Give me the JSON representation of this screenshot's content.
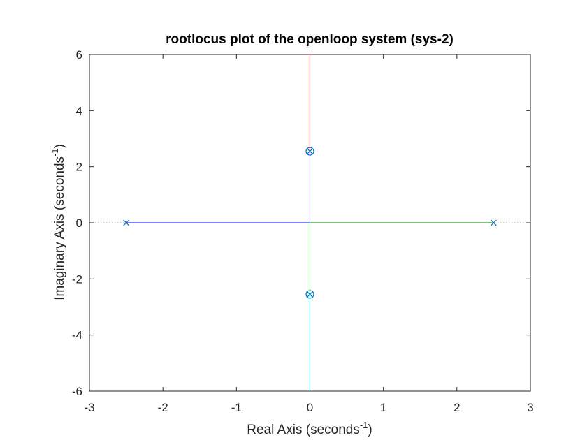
{
  "chart_data": {
    "type": "scatter",
    "title": "rootlocus plot of the openloop system (sys-2)",
    "xlabel": {
      "text": "Real Axis (seconds",
      "sup": "-1",
      "close": ")"
    },
    "ylabel": {
      "text": "Imaginary Axis (seconds",
      "sup": "-1",
      "close": ")"
    },
    "xlim": [
      -3,
      3
    ],
    "ylim": [
      -6,
      6
    ],
    "xticks": [
      -3,
      -2,
      -1,
      0,
      1,
      2,
      3
    ],
    "yticks": [
      -6,
      -4,
      -2,
      0,
      2,
      4,
      6
    ],
    "grid": false,
    "colors": {
      "axes": "#262626",
      "marker": "#0072BD",
      "reference_line": "#999999",
      "branch_1": "#0000FF",
      "branch_2": "#008000",
      "branch_3": "#FF0000",
      "branch_4": "#00BFBF"
    },
    "series": [
      {
        "color_key": "branch_1",
        "x": [
          -2.5,
          0,
          0
        ],
        "y": [
          0,
          0,
          2.55
        ]
      },
      {
        "color_key": "branch_2",
        "x": [
          2.5,
          0,
          0
        ],
        "y": [
          0,
          0,
          -2.55
        ]
      },
      {
        "color_key": "branch_3",
        "x": [
          0,
          0
        ],
        "y": [
          2.55,
          6
        ]
      },
      {
        "color_key": "branch_4",
        "x": [
          0,
          0
        ],
        "y": [
          -2.55,
          -6
        ]
      }
    ],
    "poles": [
      {
        "x": -2.5,
        "y": 0
      },
      {
        "x": 2.5,
        "y": 0
      },
      {
        "x": 0,
        "y": 2.55
      },
      {
        "x": 0,
        "y": -2.55
      }
    ],
    "zeros": [
      {
        "x": 0,
        "y": 2.55
      },
      {
        "x": 0,
        "y": -2.55
      }
    ]
  }
}
